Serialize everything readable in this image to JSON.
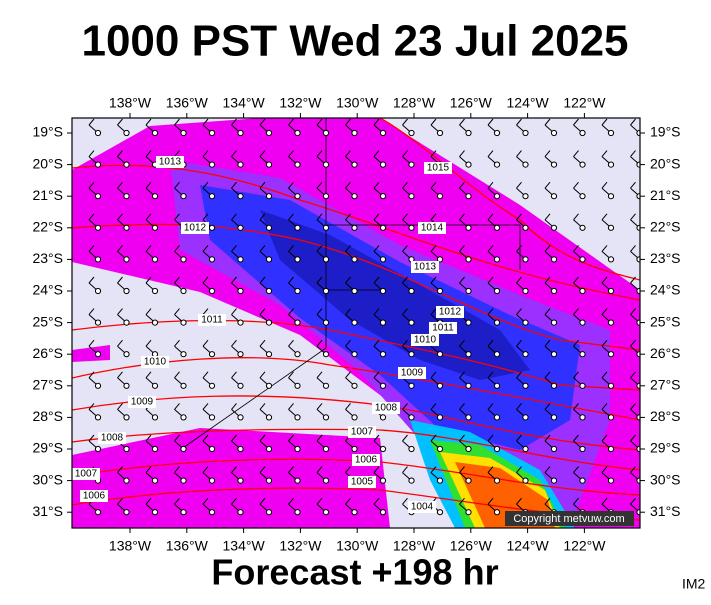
{
  "header": {
    "title": "1000 PST Wed 23 Jul 2025"
  },
  "map": {
    "lon_labels": [
      "138°W",
      "136°W",
      "134°W",
      "132°W",
      "130°W",
      "128°W",
      "126°W",
      "124°W",
      "122°W"
    ],
    "lat_labels": [
      "19°S",
      "20°S",
      "21°S",
      "22°S",
      "23°S",
      "24°S",
      "25°S",
      "26°S",
      "27°S",
      "28°S",
      "29°S",
      "30°S",
      "31°S"
    ],
    "isobar_labels": [
      "1013",
      "1015",
      "1014",
      "1012",
      "1013",
      "1011",
      "1012",
      "1011",
      "1010",
      "1010",
      "1009",
      "1009",
      "1008",
      "1007",
      "1008",
      "1006",
      "1005",
      "1007",
      "1004",
      "1006"
    ],
    "copyright": "Copyright metvuw.com"
  },
  "footer": {
    "forecast": "Forecast +198 hr",
    "code": "IM2"
  }
}
